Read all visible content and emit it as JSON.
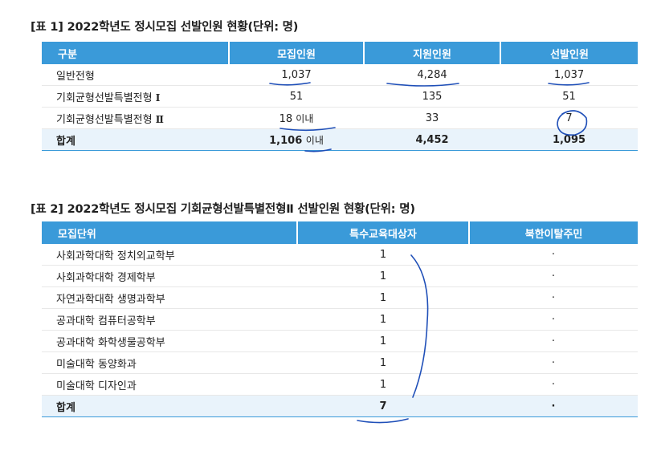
{
  "table1": {
    "caption": "[표 1] 2022학년도 정시모집 선발인원 현황(단위: 명)",
    "headers": [
      "구분",
      "모집인원",
      "지원인원",
      "선발인원"
    ],
    "rows": [
      {
        "label": "일반전형",
        "roman": "",
        "recruit": "1,037",
        "recruit_unit": "",
        "apply": "4,284",
        "selected": "1,037"
      },
      {
        "label": "기회균형선발특별전형",
        "roman": "Ⅰ",
        "recruit": "51",
        "recruit_unit": "",
        "apply": "135",
        "selected": "51"
      },
      {
        "label": "기회균형선발특별전형",
        "roman": "Ⅱ",
        "recruit": "18",
        "recruit_unit": "이내",
        "apply": "33",
        "selected": "7"
      }
    ],
    "total": {
      "label": "합계",
      "recruit": "1,106",
      "recruit_unit": "이내",
      "apply": "4,452",
      "selected": "1,095"
    }
  },
  "table2": {
    "caption": "[표 2] 2022학년도 정시모집 기회균형선발특별전형Ⅱ 선발인원 현황(단위: 명)",
    "headers": [
      "모집단위",
      "특수교육대상자",
      "북한이탈주민"
    ],
    "rows": [
      {
        "unit": "사회과학대학 정치외교학부",
        "special": "1",
        "defector": "·"
      },
      {
        "unit": "사회과학대학 경제학부",
        "special": "1",
        "defector": "·"
      },
      {
        "unit": "자연과학대학 생명과학부",
        "special": "1",
        "defector": "·"
      },
      {
        "unit": "공과대학 컴퓨터공학부",
        "special": "1",
        "defector": "·"
      },
      {
        "unit": "공과대학 화학생물공학부",
        "special": "1",
        "defector": "·"
      },
      {
        "unit": "미술대학 동양화과",
        "special": "1",
        "defector": "·"
      },
      {
        "unit": "미술대학 디자인과",
        "special": "1",
        "defector": "·"
      }
    ],
    "total": {
      "unit": "합계",
      "special": "7",
      "defector": "·"
    }
  },
  "colors": {
    "header_bg": "#3a9ad9",
    "total_bg": "#e9f3fb",
    "ink": "#1f4fb8"
  }
}
